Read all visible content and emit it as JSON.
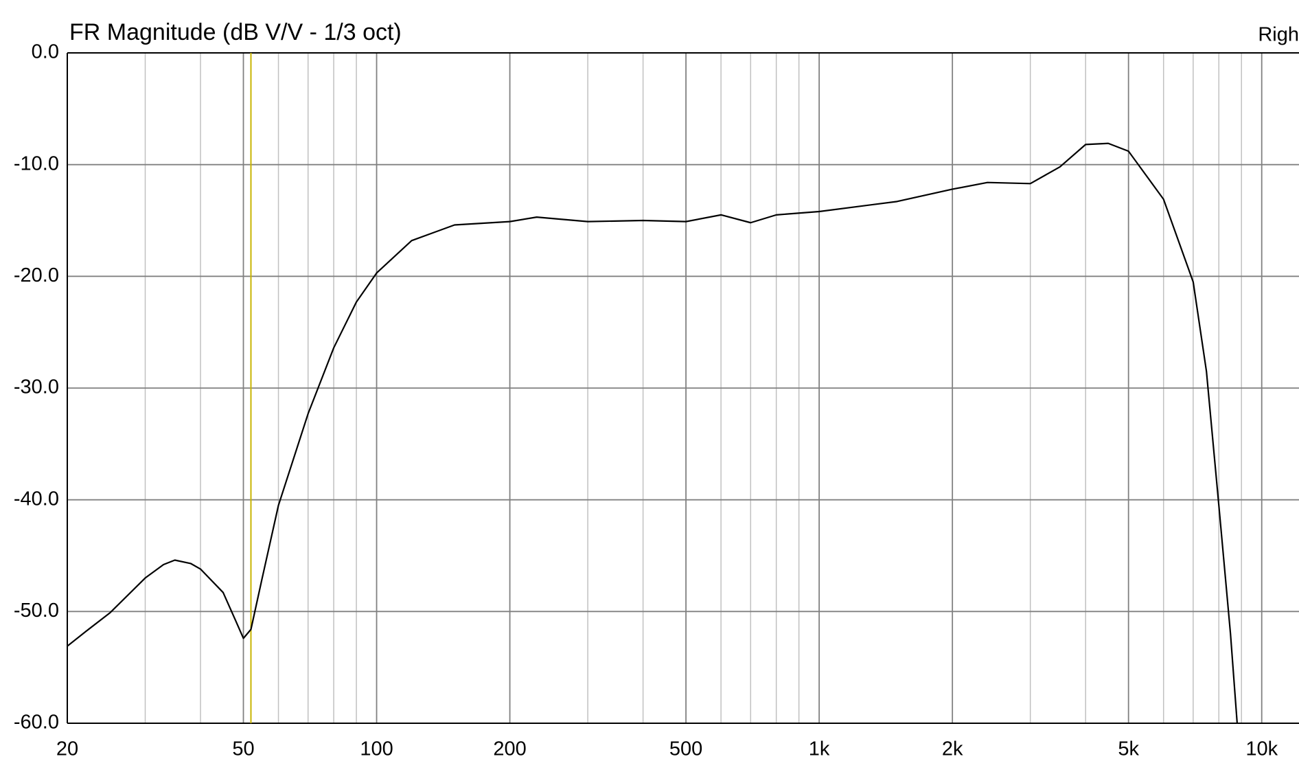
{
  "chart_data": {
    "type": "line",
    "title": "FR Magnitude (dB V/V - 1/3 oct)",
    "legend_text": "Righ",
    "log_x": true,
    "xlim": [
      20,
      12140
    ],
    "ylim": [
      -60,
      0
    ],
    "xticks": [
      20,
      50,
      100,
      200,
      500,
      {
        "value": 1000,
        "label": "1k"
      },
      {
        "value": 2000,
        "label": "2k"
      },
      {
        "value": 5000,
        "label": "5k"
      },
      {
        "value": 10000,
        "label": "10k"
      }
    ],
    "xgrid_minor": [
      30,
      40,
      60,
      70,
      80,
      90,
      300,
      400,
      600,
      700,
      800,
      900,
      3000,
      4000,
      6000,
      7000,
      8000,
      9000
    ],
    "yticks": [
      {
        "value": 0,
        "label": "0.0"
      },
      {
        "value": -10,
        "label": "-10.0"
      },
      {
        "value": -20,
        "label": "-20.0"
      },
      {
        "value": -30,
        "label": "-30.0"
      },
      {
        "value": -40,
        "label": "-40.0"
      },
      {
        "value": -50,
        "label": "-50.0"
      },
      {
        "value": -60,
        "label": "-60.0"
      }
    ],
    "grid": true,
    "cursor": {
      "x": 52,
      "color": "#c8b400"
    },
    "x": [
      20,
      22,
      25,
      30,
      33,
      35,
      38,
      40,
      45,
      48,
      50,
      52,
      55,
      60,
      70,
      80,
      90,
      100,
      120,
      150,
      200,
      230,
      300,
      400,
      500,
      600,
      700,
      800,
      1000,
      1500,
      2000,
      2400,
      3000,
      3500,
      4000,
      4500,
      5000,
      6000,
      7000,
      7500,
      8000,
      8500,
      8800
    ],
    "series": [
      {
        "color": "#000000",
        "values": [
          -53.1,
          -51.8,
          -50.1,
          -47.0,
          -45.8,
          -45.4,
          -45.7,
          -46.2,
          -48.3,
          -50.8,
          -52.4,
          -51.6,
          -47.2,
          -40.5,
          -32.3,
          -26.4,
          -22.3,
          -19.7,
          -16.8,
          -15.4,
          -15.1,
          -14.7,
          -15.1,
          -15.0,
          -15.1,
          -14.5,
          -15.2,
          -14.5,
          -14.2,
          -13.3,
          -12.2,
          -11.6,
          -11.7,
          -10.2,
          -8.2,
          -8.1,
          -8.8,
          -13.1,
          -20.5,
          -28.5,
          -40.5,
          -52.0,
          -60.0
        ]
      }
    ]
  }
}
